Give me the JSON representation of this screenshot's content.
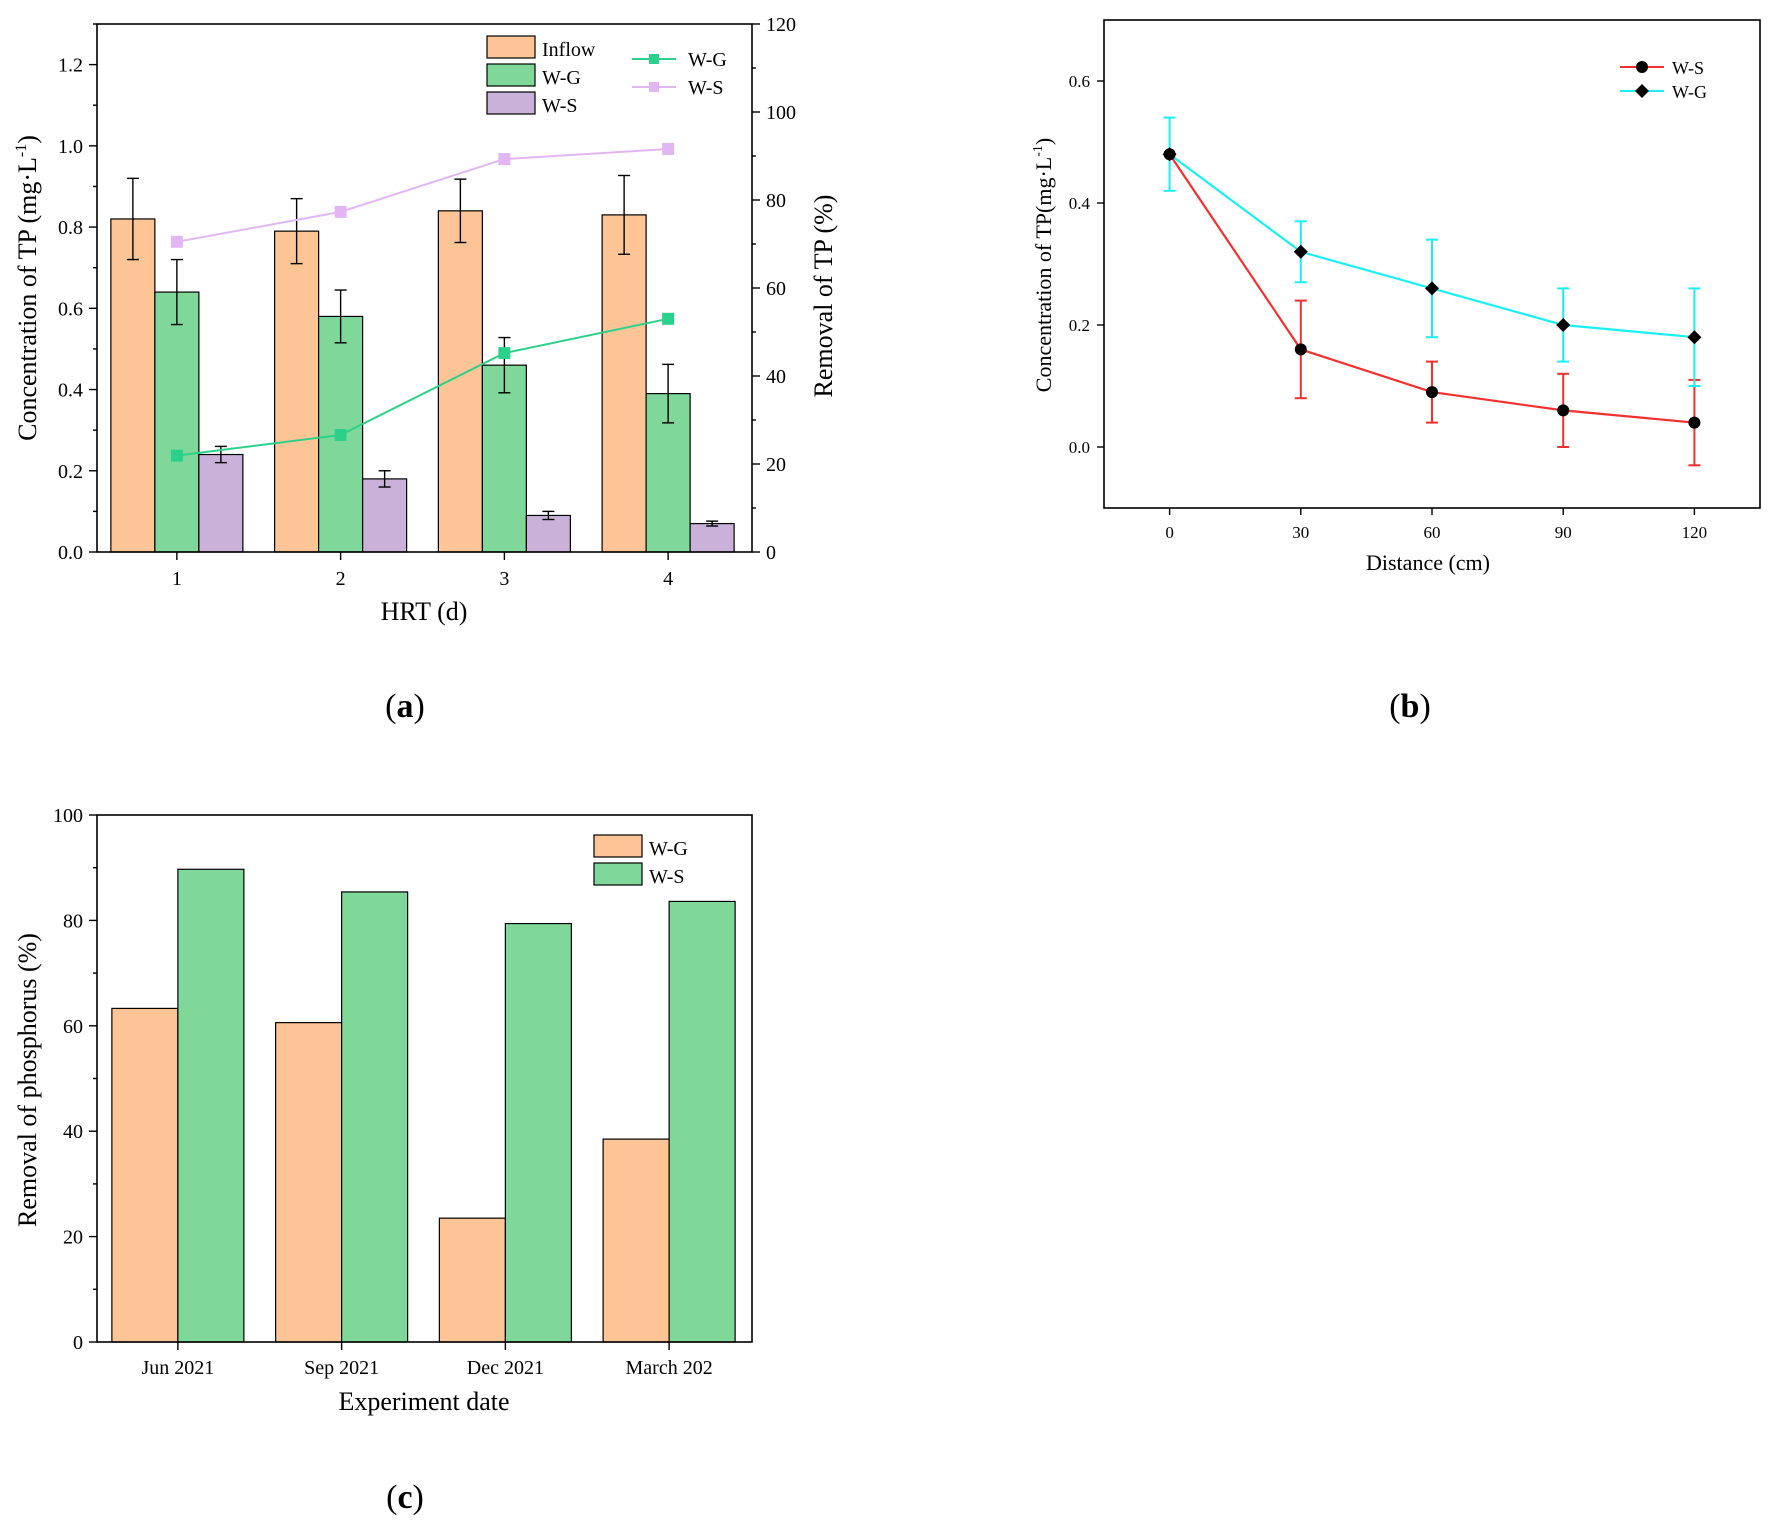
{
  "panel_labels": {
    "a": "a",
    "b": "b",
    "c": "c"
  },
  "chart_data": [
    {
      "id": "a",
      "type": "bar",
      "xlabel": "HRT (d)",
      "ylabel": "Concentration of TP (mg·L",
      "ylabel_sup": "-1",
      "ylabel_tail": ")",
      "y2label": "Removal of TP (%)",
      "categories": [
        "1",
        "2",
        "3",
        "4"
      ],
      "ylim": [
        0,
        1.3
      ],
      "yticks": [
        "0.0",
        "0.2",
        "0.4",
        "0.6",
        "0.8",
        "1.0",
        "1.2"
      ],
      "ytick_values": [
        0,
        0.2,
        0.4,
        0.6,
        0.8,
        1.0,
        1.2
      ],
      "y2lim": [
        0,
        120
      ],
      "y2ticks": [
        "0",
        "20",
        "40",
        "60",
        "80",
        "100",
        "120"
      ],
      "y2tick_values": [
        0,
        20,
        40,
        60,
        80,
        100,
        120
      ],
      "bar_series": [
        {
          "name": "Inflow",
          "color": "#FDC595",
          "values": [
            0.82,
            0.79,
            0.84,
            0.83
          ],
          "errors": [
            0.1,
            0.08,
            0.078,
            0.097
          ]
        },
        {
          "name": "W-G",
          "color": "#7FD89A",
          "values": [
            0.64,
            0.58,
            0.46,
            0.39
          ],
          "errors": [
            0.08,
            0.065,
            0.068,
            0.072
          ]
        },
        {
          "name": "W-S",
          "color": "#C9B1D9",
          "values": [
            0.24,
            0.18,
            0.09,
            0.07
          ],
          "errors": [
            0.02,
            0.02,
            0.01,
            0.006
          ]
        }
      ],
      "line_series": [
        {
          "name": "W-G",
          "color": "#2BD18A",
          "values": [
            21.9,
            26.6,
            45.2,
            53.0
          ]
        },
        {
          "name": "W-S",
          "color": "#E2B5F3",
          "values": [
            70.5,
            77.3,
            89.3,
            91.6
          ]
        }
      ]
    },
    {
      "id": "b",
      "type": "line",
      "xlabel": "Distance (cm)",
      "ylabel": "Concentration of TP(mg·L",
      "ylabel_sup": "-1",
      "ylabel_tail": ")",
      "x": [
        0,
        30,
        60,
        90,
        120
      ],
      "xticks": [
        "0",
        "30",
        "60",
        "90",
        "120"
      ],
      "xlim": [
        -15,
        135
      ],
      "ylim": [
        -0.1,
        0.7
      ],
      "yticks": [
        "0.0",
        "0.2",
        "0.4",
        "0.6"
      ],
      "ytick_values": [
        0,
        0.2,
        0.4,
        0.6
      ],
      "series": [
        {
          "name": "W-S",
          "color": "#F2312E",
          "marker": "circle",
          "values": [
            0.48,
            0.16,
            0.09,
            0.06,
            0.04
          ],
          "errors": [
            0,
            0.08,
            0.05,
            0.06,
            0.07
          ]
        },
        {
          "name": "W-G",
          "color": "#19F0F4",
          "marker": "diamond",
          "values": [
            0.48,
            0.32,
            0.26,
            0.2,
            0.18
          ],
          "errors": [
            0.06,
            0.05,
            0.08,
            0.06,
            0.08
          ]
        }
      ]
    },
    {
      "id": "c",
      "type": "bar",
      "xlabel": "Experiment date",
      "ylabel": "Removal of phosphorus (%)",
      "categories": [
        "Jun 2021",
        "Sep 2021",
        "Dec 2021",
        "March 202"
      ],
      "ylim": [
        0,
        100
      ],
      "yticks": [
        "0",
        "20",
        "40",
        "60",
        "80",
        "100"
      ],
      "ytick_values": [
        0,
        20,
        40,
        60,
        80,
        100
      ],
      "series": [
        {
          "name": "W-G",
          "color": "#FDC595",
          "values": [
            63.3,
            60.6,
            23.5,
            38.5
          ]
        },
        {
          "name": "W-S",
          "color": "#7FD89A",
          "values": [
            89.7,
            85.4,
            79.4,
            83.6
          ]
        }
      ]
    }
  ]
}
